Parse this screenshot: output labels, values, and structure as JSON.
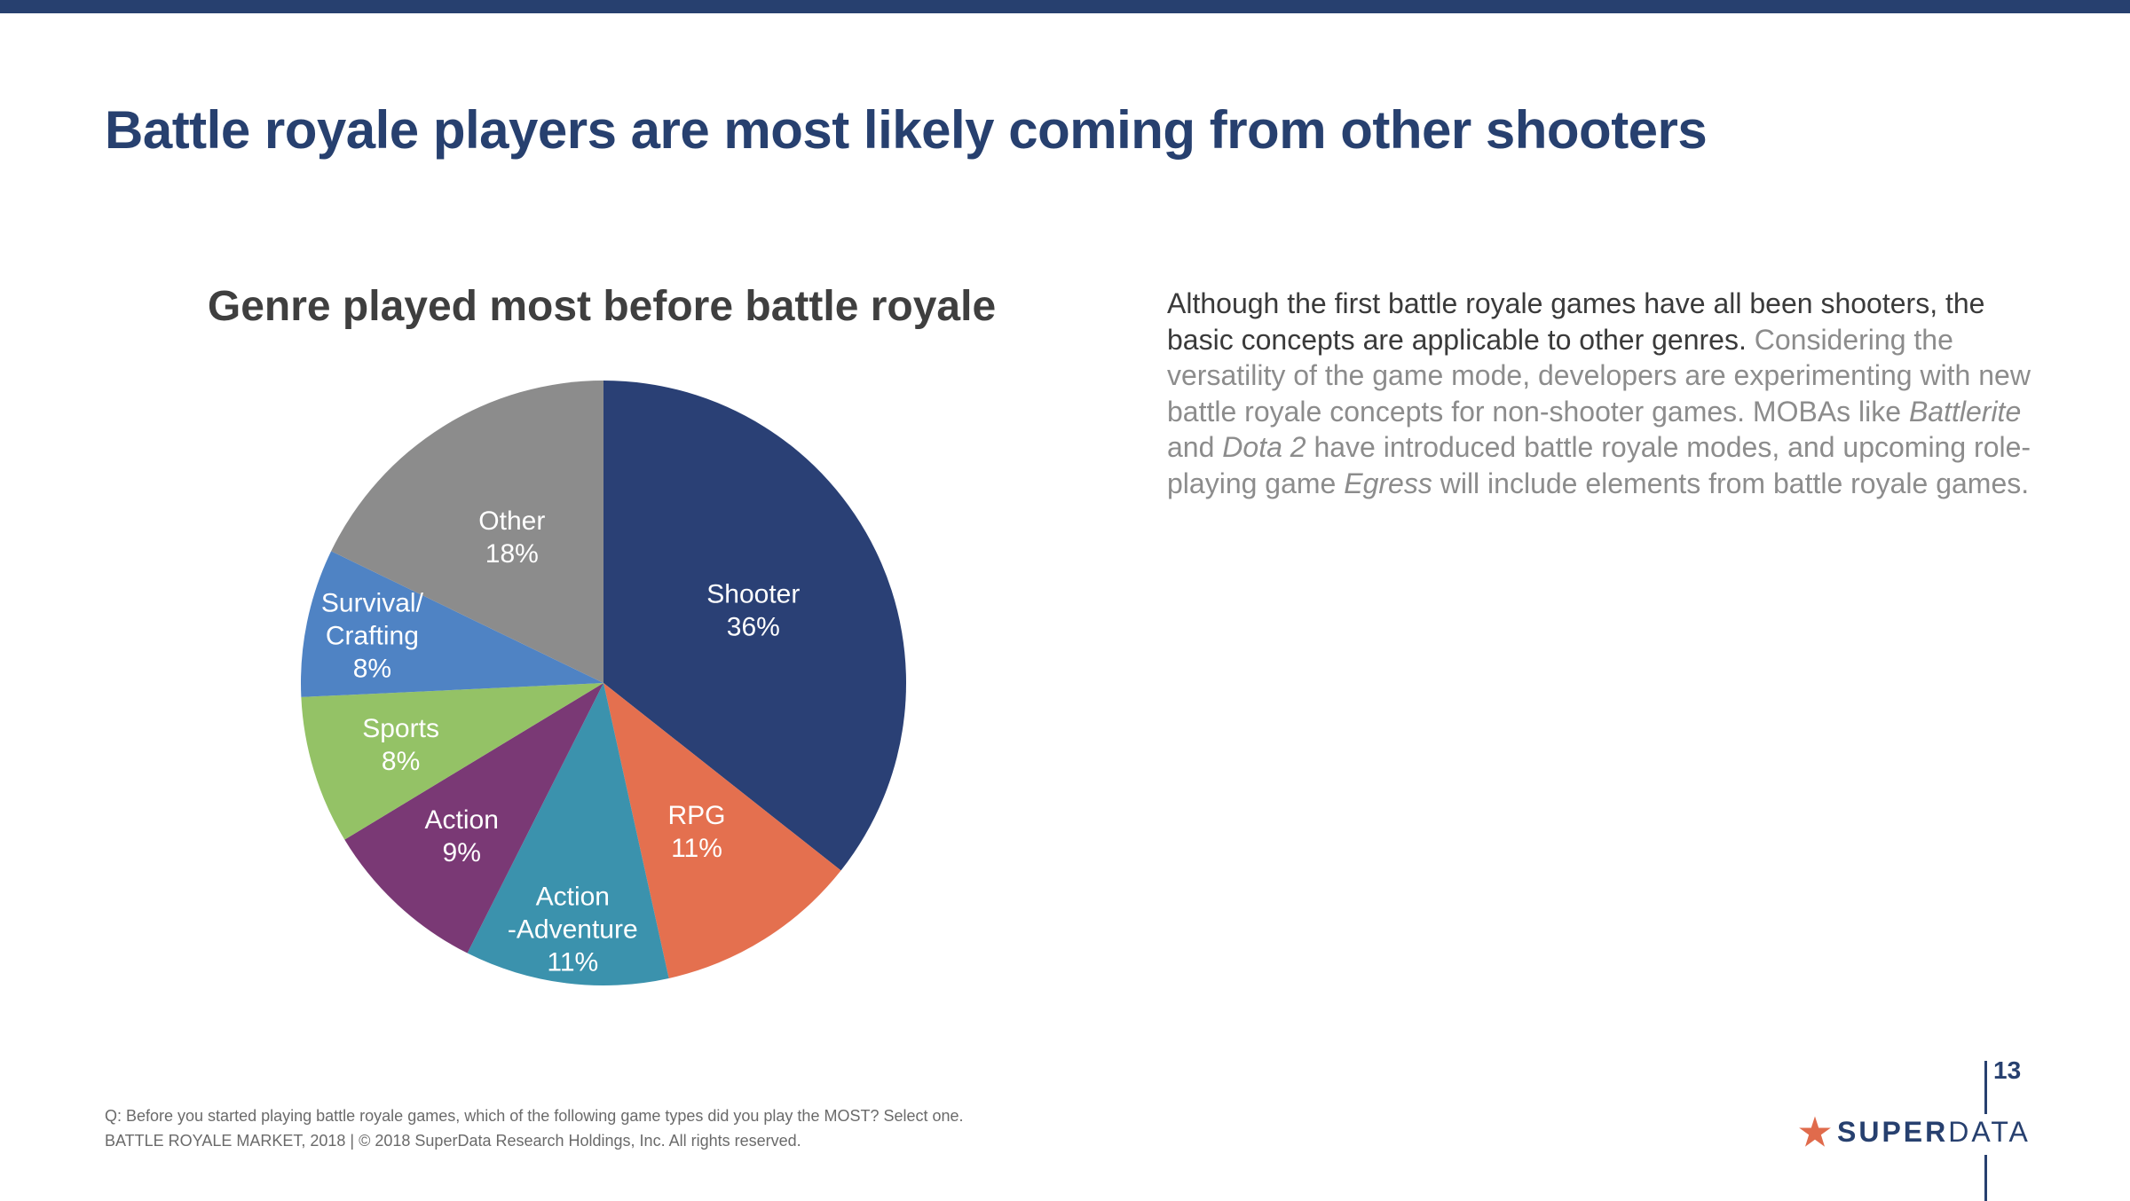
{
  "slide": {
    "title": "Battle royale players are most likely coming from other shooters",
    "page_number": "13"
  },
  "body": {
    "lead": "Although the first battle royale games have all been shooters, the basic concepts are applicable to other genres.",
    "p1": " Considering the versatility of the game mode, developers are experimenting with new battle royale concepts for non-shooter games. MOBAs like ",
    "game1": "Battlerite",
    "p2": " and ",
    "game2": "Dota 2",
    "p3": " have introduced battle royale modes, and upcoming role-playing game ",
    "game3": "Egress",
    "p4": " will include elements from battle royale games."
  },
  "footnote": {
    "question": "Q: Before you started playing battle royale games, which of the following game types did you play the MOST? Select one.",
    "source": "BATTLE ROYALE MARKET, 2018  |  © 2018 SuperData Research Holdings, Inc. All rights reserved."
  },
  "logo": {
    "left": "SUPER",
    "right": "DATA"
  },
  "colors": {
    "brand": "#27406f",
    "accent_star": "#e06b4c"
  },
  "chart_data": {
    "type": "pie",
    "title": "Genre played most before battle royale",
    "start_angle": "12 o'clock, clockwise",
    "legend": "none (labels inside slices)",
    "slices": [
      {
        "label": [
          "Shooter"
        ],
        "pct": "36%",
        "value": 36,
        "color": "#2a4075"
      },
      {
        "label": [
          "RPG"
        ],
        "pct": "11%",
        "value": 11,
        "color": "#e4704f"
      },
      {
        "label": [
          "Action",
          "-Adventure"
        ],
        "pct": "11%",
        "value": 11,
        "color": "#3b92ad"
      },
      {
        "label": [
          "Action"
        ],
        "pct": "9%",
        "value": 9,
        "color": "#7a3975"
      },
      {
        "label": [
          "Sports"
        ],
        "pct": "8%",
        "value": 8,
        "color": "#94c266"
      },
      {
        "label": [
          "Survival/",
          "Crafting"
        ],
        "pct": "8%",
        "value": 8,
        "color": "#4f83c4"
      },
      {
        "label": [
          "Other"
        ],
        "pct": "18%",
        "value": 18,
        "color": "#8c8c8c"
      }
    ]
  }
}
